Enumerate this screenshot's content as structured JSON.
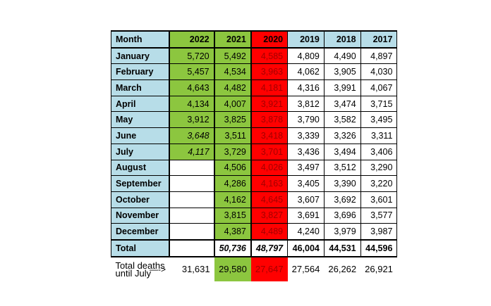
{
  "header": {
    "month": "Month",
    "years": [
      "2022",
      "2021",
      "2020",
      "2019",
      "2018",
      "2017"
    ]
  },
  "rows": [
    {
      "month": "January",
      "values": [
        "5,720",
        "5,492",
        "4,585",
        "4,809",
        "4,490",
        "4,897"
      ]
    },
    {
      "month": "February",
      "values": [
        "5,457",
        "4,534",
        "3,963",
        "4,062",
        "3,905",
        "4,030"
      ]
    },
    {
      "month": "March",
      "values": [
        "4,643",
        "4,482",
        "4,181",
        "4,316",
        "3,991",
        "4,067"
      ]
    },
    {
      "month": "April",
      "values": [
        "4,134",
        "4,007",
        "3,921",
        "3,812",
        "3,474",
        "3,715"
      ]
    },
    {
      "month": "May",
      "values": [
        "3,912",
        "3,825",
        "3,878",
        "3,790",
        "3,582",
        "3,495"
      ]
    },
    {
      "month": "June",
      "values": [
        "3,648",
        "3,511",
        "3,418",
        "3,339",
        "3,326",
        "3,311"
      ]
    },
    {
      "month": "July",
      "values": [
        "4,117",
        "3,729",
        "3,701",
        "3,436",
        "3,494",
        "3,406"
      ]
    },
    {
      "month": "August",
      "values": [
        "",
        "4,506",
        "4,026",
        "3,497",
        "3,512",
        "3,290"
      ]
    },
    {
      "month": "September",
      "values": [
        "",
        "4,286",
        "4,163",
        "3,405",
        "3,390",
        "3,220"
      ]
    },
    {
      "month": "October",
      "values": [
        "",
        "4,162",
        "4,645",
        "3,607",
        "3,692",
        "3,601"
      ]
    },
    {
      "month": "November",
      "values": [
        "",
        "3,815",
        "3,827",
        "3,691",
        "3,696",
        "3,577"
      ]
    },
    {
      "month": "December",
      "values": [
        "",
        "4,387",
        "4,489",
        "4,240",
        "3,979",
        "3,987"
      ]
    }
  ],
  "total": {
    "label": "Total",
    "values": [
      "",
      "50,736",
      "48,797",
      "46,004",
      "44,531",
      "44,596"
    ]
  },
  "footer": {
    "label_line1": "Total deaths",
    "label_line2": "until July",
    "arrow": "—->",
    "values": [
      "31,631",
      "29,580",
      "27,647",
      "27,564",
      "26,262",
      "26,921"
    ]
  },
  "colors": {
    "green": "#8cc63f",
    "red": "#ff0000",
    "blue": "#b7dde8"
  }
}
